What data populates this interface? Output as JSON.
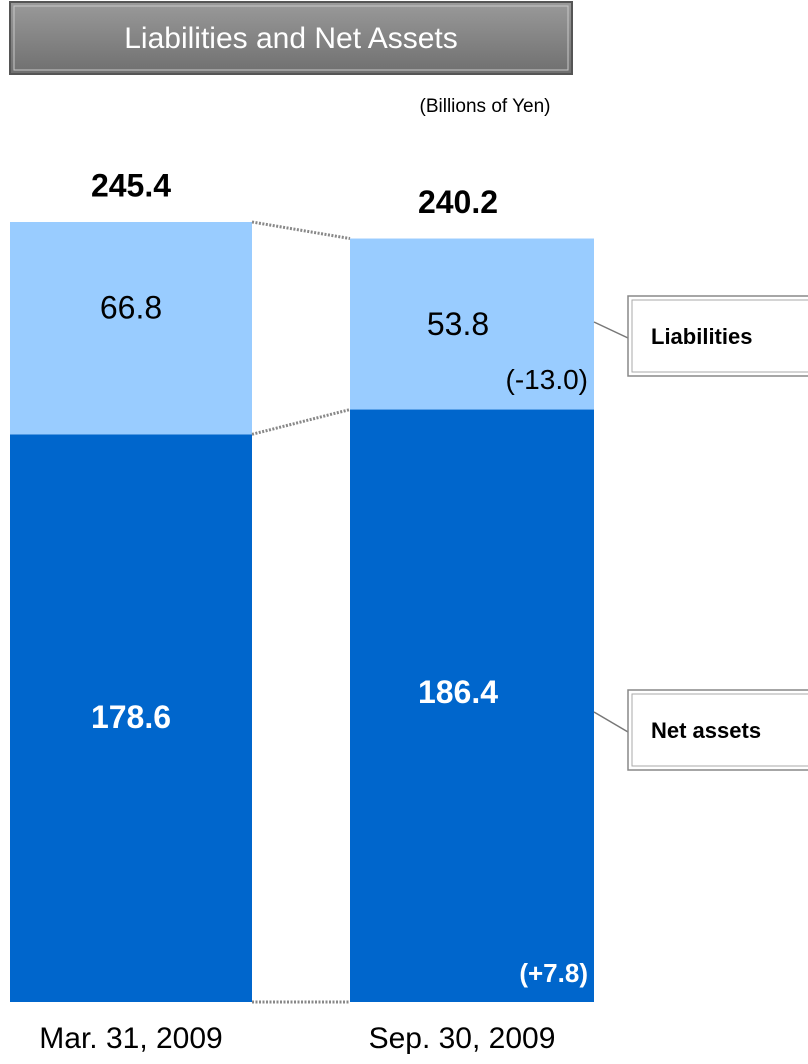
{
  "chart_data": {
    "type": "stacked_bar",
    "title": "Liabilities and Net Assets",
    "unit": "(Billions of Yen)",
    "categories": [
      "Mar. 31, 2009",
      "Sep. 30, 2009"
    ],
    "series": [
      {
        "name": "Net assets",
        "color": "#0066cc",
        "values": [
          178.6,
          186.4
        ],
        "changes": [
          null,
          7.8
        ],
        "change_labels": [
          null,
          "(+7.8)"
        ]
      },
      {
        "name": "Liabilities",
        "color": "#99ccff",
        "values": [
          66.8,
          53.8
        ],
        "changes": [
          null,
          -13.0
        ],
        "change_labels": [
          null,
          "(-13.0)"
        ]
      }
    ],
    "totals": [
      245.4,
      240.2
    ],
    "ylim": [
      0,
      245.4
    ]
  }
}
